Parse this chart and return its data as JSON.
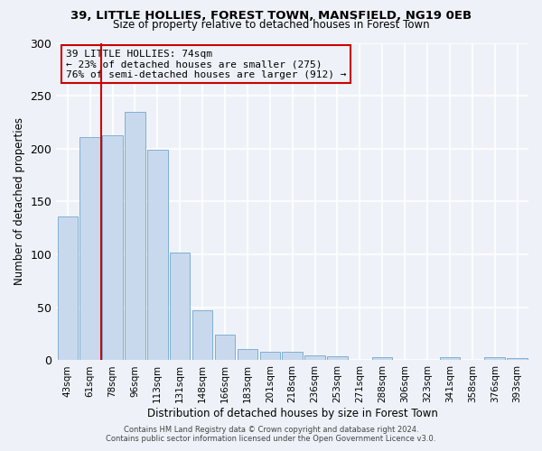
{
  "title_line1": "39, LITTLE HOLLIES, FOREST TOWN, MANSFIELD, NG19 0EB",
  "title_line2": "Size of property relative to detached houses in Forest Town",
  "xlabel": "Distribution of detached houses by size in Forest Town",
  "ylabel": "Number of detached properties",
  "bar_labels": [
    "43sqm",
    "61sqm",
    "78sqm",
    "96sqm",
    "113sqm",
    "131sqm",
    "148sqm",
    "166sqm",
    "183sqm",
    "201sqm",
    "218sqm",
    "236sqm",
    "253sqm",
    "271sqm",
    "288sqm",
    "306sqm",
    "323sqm",
    "341sqm",
    "358sqm",
    "376sqm",
    "393sqm"
  ],
  "bar_values": [
    136,
    211,
    213,
    235,
    199,
    102,
    47,
    24,
    11,
    8,
    8,
    5,
    4,
    0,
    3,
    0,
    0,
    3,
    0,
    3,
    2
  ],
  "bar_color": "#c9d9ed",
  "bar_edge_color": "#7fafd4",
  "vline_x": 1.5,
  "vline_color": "#cc0000",
  "ylim": [
    0,
    300
  ],
  "yticks": [
    0,
    50,
    100,
    150,
    200,
    250,
    300
  ],
  "annotation_title": "39 LITTLE HOLLIES: 74sqm",
  "annotation_line2": "← 23% of detached houses are smaller (275)",
  "annotation_line3": "76% of semi-detached houses are larger (912) →",
  "annotation_box_color": "#cc0000",
  "footer_line1": "Contains HM Land Registry data © Crown copyright and database right 2024.",
  "footer_line2": "Contains public sector information licensed under the Open Government Licence v3.0.",
  "bg_color": "#eef2f8"
}
